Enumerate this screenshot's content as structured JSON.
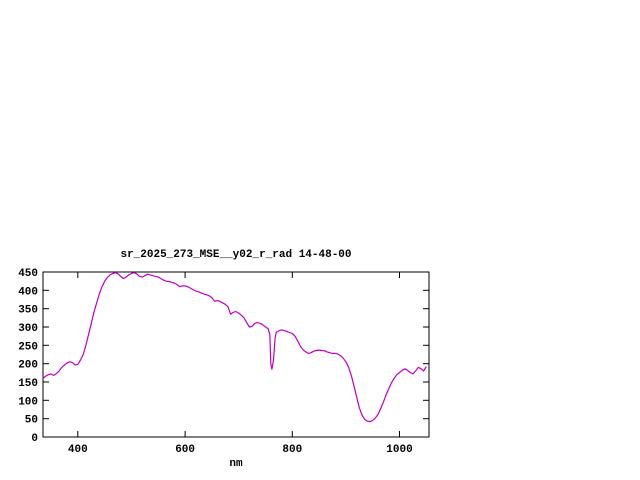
{
  "chart_data": {
    "type": "line",
    "title": "sr_2025_273_MSE__y02_r_rad 14-48-00",
    "xlabel": "nm",
    "ylabel": "",
    "xlim": [
      335,
      1055
    ],
    "ylim": [
      0,
      450
    ],
    "xticks": [
      400,
      600,
      800,
      1000
    ],
    "yticks": [
      0,
      50,
      100,
      150,
      200,
      250,
      300,
      350,
      400,
      450
    ],
    "grid": false,
    "legend": "none",
    "line_color": "#c000c0",
    "series": [
      {
        "name": "sr_2025_273_MSE__y02_r_rad",
        "x": [
          335,
          340,
          345,
          350,
          355,
          360,
          365,
          370,
          375,
          380,
          385,
          390,
          395,
          400,
          405,
          410,
          415,
          420,
          425,
          430,
          435,
          440,
          445,
          450,
          455,
          460,
          465,
          470,
          475,
          480,
          485,
          490,
          495,
          500,
          505,
          510,
          515,
          520,
          525,
          530,
          535,
          540,
          545,
          550,
          555,
          560,
          565,
          570,
          575,
          580,
          585,
          590,
          595,
          600,
          605,
          610,
          615,
          620,
          625,
          630,
          635,
          640,
          645,
          650,
          655,
          660,
          665,
          670,
          675,
          680,
          685,
          690,
          695,
          700,
          705,
          710,
          715,
          720,
          725,
          730,
          735,
          740,
          745,
          750,
          755,
          758,
          760,
          762,
          765,
          768,
          770,
          775,
          780,
          785,
          790,
          795,
          800,
          805,
          810,
          815,
          820,
          825,
          830,
          835,
          840,
          845,
          850,
          855,
          860,
          865,
          870,
          875,
          880,
          885,
          890,
          895,
          900,
          905,
          910,
          915,
          920,
          925,
          930,
          935,
          940,
          945,
          950,
          955,
          960,
          965,
          970,
          975,
          980,
          985,
          990,
          995,
          1000,
          1005,
          1010,
          1015,
          1020,
          1025,
          1030,
          1035,
          1040,
          1045,
          1050
        ],
        "values": [
          160,
          166,
          170,
          172,
          168,
          173,
          180,
          190,
          196,
          202,
          205,
          203,
          196,
          198,
          210,
          225,
          250,
          280,
          310,
          340,
          365,
          390,
          410,
          425,
          435,
          442,
          446,
          448,
          445,
          438,
          432,
          436,
          442,
          446,
          448,
          445,
          438,
          436,
          440,
          444,
          442,
          440,
          438,
          436,
          432,
          428,
          425,
          424,
          422,
          420,
          416,
          410,
          412,
          412,
          410,
          406,
          402,
          398,
          396,
          393,
          390,
          388,
          385,
          380,
          370,
          372,
          370,
          366,
          362,
          355,
          335,
          340,
          342,
          338,
          332,
          325,
          312,
          300,
          302,
          310,
          312,
          310,
          306,
          300,
          295,
          280,
          200,
          185,
          210,
          270,
          285,
          290,
          292,
          290,
          288,
          285,
          282,
          275,
          262,
          248,
          238,
          232,
          228,
          230,
          234,
          236,
          237,
          236,
          235,
          232,
          230,
          228,
          228,
          226,
          222,
          215,
          205,
          190,
          168,
          140,
          110,
          80,
          60,
          48,
          43,
          42,
          45,
          52,
          62,
          78,
          95,
          115,
          132,
          148,
          160,
          170,
          176,
          182,
          186,
          182,
          176,
          172,
          180,
          190,
          186,
          180,
          192
        ]
      }
    ]
  }
}
